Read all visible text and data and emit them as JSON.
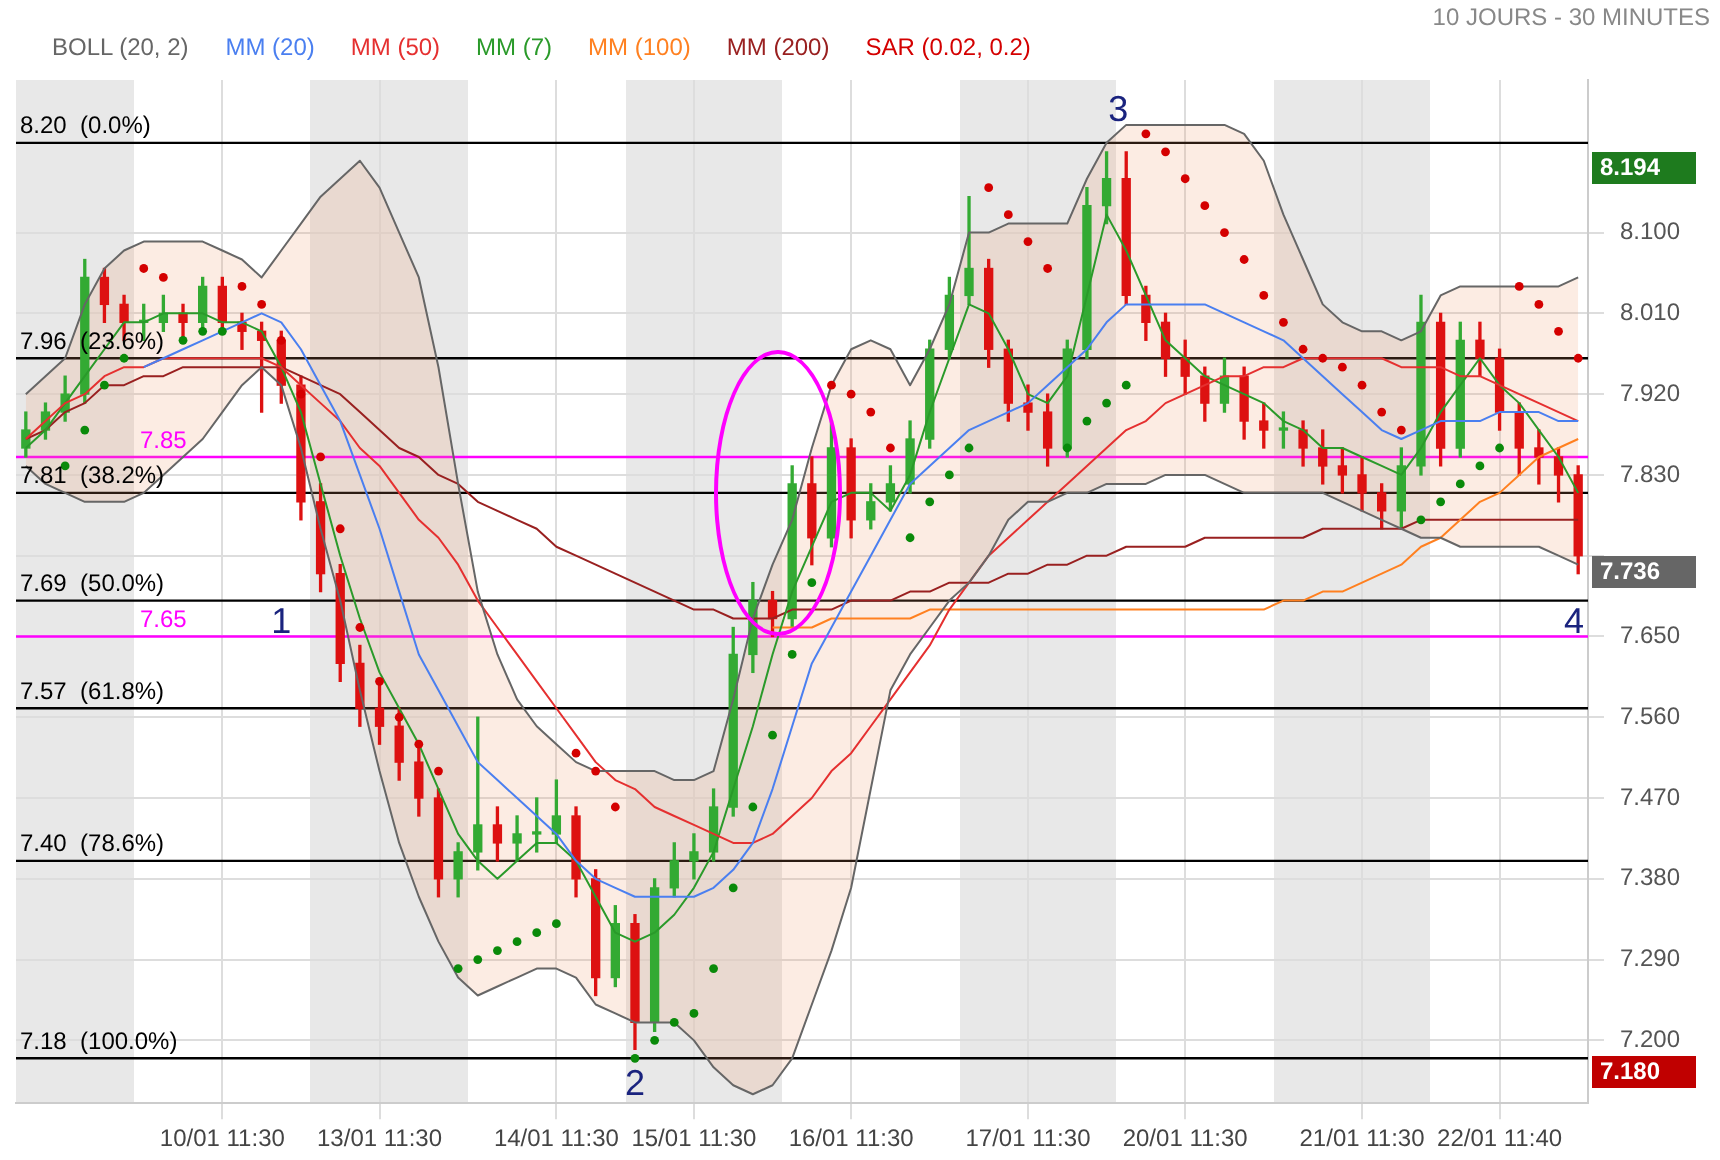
{
  "chart_data": {
    "type": "candlestick",
    "categories": [
      null,
      null,
      null,
      null,
      null,
      null,
      null,
      null,
      null,
      null,
      "10/01 11:30",
      null,
      null,
      null,
      null,
      null,
      null,
      null,
      "13/01 11:30",
      null,
      null,
      null,
      null,
      null,
      null,
      null,
      null,
      "14/01 11:30",
      null,
      null,
      null,
      null,
      null,
      null,
      "15/01 11:30",
      null,
      null,
      null,
      null,
      null,
      null,
      null,
      "16/01 11:30",
      null,
      null,
      null,
      null,
      null,
      null,
      null,
      null,
      "17/01 11:30",
      null,
      null,
      null,
      null,
      null,
      null,
      null,
      "20/01 11:30",
      null,
      null,
      null,
      null,
      null,
      null,
      null,
      null,
      "21/01 11:30",
      null,
      null,
      null,
      null,
      null,
      null,
      "22/01 11:40",
      null,
      null,
      null,
      null
    ],
    "ohlc": [
      [
        7.86,
        7.9,
        7.85,
        7.88
      ],
      [
        7.88,
        7.91,
        7.87,
        7.9
      ],
      [
        7.9,
        7.94,
        7.89,
        7.92
      ],
      [
        7.92,
        8.07,
        7.91,
        8.05
      ],
      [
        8.05,
        8.06,
        8.0,
        8.02
      ],
      [
        8.02,
        8.03,
        7.98,
        8.0
      ],
      [
        8.0,
        8.02,
        7.98,
        8.0
      ],
      [
        8.0,
        8.03,
        7.99,
        8.01
      ],
      [
        8.01,
        8.02,
        7.98,
        8.0
      ],
      [
        8.0,
        8.05,
        7.99,
        8.04
      ],
      [
        8.04,
        8.05,
        7.99,
        8.0
      ],
      [
        8.0,
        8.01,
        7.97,
        7.99
      ],
      [
        7.99,
        8.0,
        7.9,
        7.98
      ],
      [
        7.98,
        7.99,
        7.91,
        7.93
      ],
      [
        7.93,
        7.94,
        7.78,
        7.8
      ],
      [
        7.8,
        7.82,
        7.7,
        7.72
      ],
      [
        7.72,
        7.73,
        7.6,
        7.62
      ],
      [
        7.62,
        7.64,
        7.55,
        7.57
      ],
      [
        7.57,
        7.6,
        7.53,
        7.55
      ],
      [
        7.55,
        7.57,
        7.49,
        7.51
      ],
      [
        7.51,
        7.53,
        7.45,
        7.47
      ],
      [
        7.47,
        7.48,
        7.36,
        7.38
      ],
      [
        7.38,
        7.42,
        7.36,
        7.41
      ],
      [
        7.41,
        7.56,
        7.39,
        7.44
      ],
      [
        7.44,
        7.46,
        7.4,
        7.42
      ],
      [
        7.42,
        7.45,
        7.4,
        7.43
      ],
      [
        7.43,
        7.47,
        7.41,
        7.43
      ],
      [
        7.43,
        7.49,
        7.42,
        7.45
      ],
      [
        7.45,
        7.46,
        7.36,
        7.38
      ],
      [
        7.38,
        7.39,
        7.25,
        7.27
      ],
      [
        7.27,
        7.35,
        7.26,
        7.33
      ],
      [
        7.33,
        7.34,
        7.19,
        7.22
      ],
      [
        7.22,
        7.38,
        7.21,
        7.37
      ],
      [
        7.37,
        7.42,
        7.36,
        7.4
      ],
      [
        7.4,
        7.43,
        7.38,
        7.41
      ],
      [
        7.41,
        7.48,
        7.4,
        7.46
      ],
      [
        7.46,
        7.66,
        7.45,
        7.63
      ],
      [
        7.63,
        7.71,
        7.61,
        7.69
      ],
      [
        7.69,
        7.7,
        7.65,
        7.67
      ],
      [
        7.67,
        7.84,
        7.66,
        7.82
      ],
      [
        7.82,
        7.85,
        7.73,
        7.76
      ],
      [
        7.76,
        7.89,
        7.75,
        7.86
      ],
      [
        7.86,
        7.87,
        7.76,
        7.78
      ],
      [
        7.78,
        7.82,
        7.77,
        7.8
      ],
      [
        7.8,
        7.84,
        7.79,
        7.82
      ],
      [
        7.82,
        7.89,
        7.81,
        7.87
      ],
      [
        7.87,
        7.98,
        7.86,
        7.97
      ],
      [
        7.97,
        8.05,
        7.96,
        8.03
      ],
      [
        8.03,
        8.14,
        8.02,
        8.06
      ],
      [
        8.06,
        8.07,
        7.95,
        7.97
      ],
      [
        7.97,
        7.98,
        7.89,
        7.91
      ],
      [
        7.91,
        7.93,
        7.88,
        7.9
      ],
      [
        7.9,
        7.92,
        7.84,
        7.86
      ],
      [
        7.86,
        7.98,
        7.85,
        7.97
      ],
      [
        7.97,
        8.15,
        7.96,
        8.13
      ],
      [
        8.13,
        8.19,
        8.11,
        8.16
      ],
      [
        8.16,
        8.19,
        8.02,
        8.03
      ],
      [
        8.03,
        8.04,
        7.98,
        8.0
      ],
      [
        8.0,
        8.01,
        7.94,
        7.96
      ],
      [
        7.96,
        7.98,
        7.92,
        7.94
      ],
      [
        7.94,
        7.95,
        7.89,
        7.91
      ],
      [
        7.91,
        7.96,
        7.9,
        7.94
      ],
      [
        7.94,
        7.95,
        7.87,
        7.89
      ],
      [
        7.89,
        7.91,
        7.86,
        7.88
      ],
      [
        7.88,
        7.9,
        7.86,
        7.88
      ],
      [
        7.88,
        7.89,
        7.84,
        7.86
      ],
      [
        7.86,
        7.88,
        7.82,
        7.84
      ],
      [
        7.84,
        7.86,
        7.81,
        7.83
      ],
      [
        7.83,
        7.85,
        7.79,
        7.81
      ],
      [
        7.81,
        7.82,
        7.77,
        7.79
      ],
      [
        7.79,
        7.86,
        7.77,
        7.84
      ],
      [
        7.84,
        8.03,
        7.83,
        8.0
      ],
      [
        8.0,
        8.01,
        7.84,
        7.86
      ],
      [
        7.86,
        8.0,
        7.85,
        7.98
      ],
      [
        7.98,
        8.0,
        7.94,
        7.96
      ],
      [
        7.96,
        7.97,
        7.88,
        7.9
      ],
      [
        7.9,
        7.91,
        7.83,
        7.86
      ],
      [
        7.86,
        7.88,
        7.82,
        7.85
      ],
      [
        7.85,
        7.86,
        7.8,
        7.83
      ],
      [
        7.83,
        7.84,
        7.72,
        7.74
      ]
    ],
    "series": [
      {
        "name": "BOLL (20, 2)",
        "type": "line",
        "color": "#666666",
        "values": [
          7.92,
          7.94,
          7.96,
          8.02,
          8.06,
          8.08,
          8.09,
          8.09,
          8.09,
          8.09,
          8.08,
          8.07,
          8.05,
          8.08,
          8.11,
          8.14,
          8.16,
          8.18,
          8.15,
          8.1,
          8.05,
          7.95,
          7.82,
          7.7,
          7.63,
          7.58,
          7.55,
          7.53,
          7.51,
          7.5,
          7.5,
          7.5,
          7.5,
          7.49,
          7.49,
          7.5,
          7.58,
          7.67,
          7.73,
          7.78,
          7.86,
          7.93,
          7.97,
          7.98,
          7.97,
          7.93,
          7.97,
          8.02,
          8.1,
          8.1,
          8.11,
          8.11,
          8.11,
          8.11,
          8.16,
          8.2,
          8.22,
          8.22,
          8.22,
          8.22,
          8.22,
          8.22,
          8.21,
          8.18,
          8.12,
          8.07,
          8.02,
          8.0,
          7.99,
          7.99,
          7.98,
          7.99,
          8.03,
          8.04,
          8.04,
          8.04,
          8.04,
          8.04,
          8.04,
          8.05
        ],
        "upper": [
          7.92,
          7.94,
          7.96,
          8.02,
          8.06,
          8.08,
          8.09,
          8.09,
          8.09,
          8.09,
          8.08,
          8.07,
          8.05,
          8.08,
          8.11,
          8.14,
          8.16,
          8.18,
          8.15,
          8.1,
          8.05,
          7.95,
          7.82,
          7.7,
          7.63,
          7.58,
          7.55,
          7.53,
          7.51,
          7.5,
          7.5,
          7.5,
          7.5,
          7.49,
          7.49,
          7.5,
          7.58,
          7.67,
          7.73,
          7.78,
          7.86,
          7.93,
          7.97,
          7.98,
          7.97,
          7.93,
          7.97,
          8.02,
          8.1,
          8.1,
          8.11,
          8.11,
          8.11,
          8.11,
          8.16,
          8.2,
          8.22,
          8.22,
          8.22,
          8.22,
          8.22,
          8.22,
          8.21,
          8.18,
          8.12,
          8.07,
          8.02,
          8.0,
          7.99,
          7.99,
          7.98,
          7.99,
          8.03,
          8.04,
          8.04,
          8.04,
          8.04,
          8.04,
          8.04,
          8.05
        ],
        "lower": [
          7.84,
          7.82,
          7.81,
          7.8,
          7.8,
          7.8,
          7.81,
          7.83,
          7.85,
          7.87,
          7.9,
          7.93,
          7.95,
          7.93,
          7.86,
          7.77,
          7.69,
          7.59,
          7.5,
          7.42,
          7.36,
          7.31,
          7.27,
          7.25,
          7.26,
          7.27,
          7.28,
          7.28,
          7.27,
          7.24,
          7.23,
          7.22,
          7.22,
          7.22,
          7.2,
          7.17,
          7.15,
          7.14,
          7.15,
          7.18,
          7.24,
          7.3,
          7.37,
          7.48,
          7.59,
          7.63,
          7.66,
          7.69,
          7.71,
          7.74,
          7.78,
          7.8,
          7.8,
          7.81,
          7.81,
          7.82,
          7.82,
          7.82,
          7.83,
          7.83,
          7.83,
          7.82,
          7.81,
          7.81,
          7.81,
          7.81,
          7.81,
          7.8,
          7.79,
          7.78,
          7.77,
          7.76,
          7.76,
          7.75,
          7.75,
          7.75,
          7.75,
          7.75,
          7.74,
          7.73
        ]
      },
      {
        "type": "line",
        "color": "#666666",
        "values": [
          7.84,
          7.82,
          7.81,
          7.8,
          7.8,
          7.8,
          7.81,
          7.83,
          7.85,
          7.87,
          7.9,
          7.93,
          7.95,
          7.93,
          7.86,
          7.77,
          7.69,
          7.59,
          7.5,
          7.42,
          7.36,
          7.31,
          7.27,
          7.25,
          7.26,
          7.27,
          7.28,
          7.28,
          7.27,
          7.24,
          7.23,
          7.22,
          7.22,
          7.22,
          7.2,
          7.17,
          7.15,
          7.14,
          7.15,
          7.18,
          7.24,
          7.3,
          7.37,
          7.48,
          7.59,
          7.63,
          7.66,
          7.69,
          7.71,
          7.74,
          7.78,
          7.8,
          7.8,
          7.81,
          7.81,
          7.82,
          7.82,
          7.82,
          7.83,
          7.83,
          7.83,
          7.82,
          7.81,
          7.81,
          7.81,
          7.81,
          7.81,
          7.8,
          7.79,
          7.78,
          7.77,
          7.76,
          7.76,
          7.75,
          7.75,
          7.75,
          7.75,
          7.75,
          7.74,
          7.73
        ]
      },
      {
        "name": "MM (20)",
        "type": "line",
        "color": "#4a7ff0",
        "values": [
          null,
          null,
          null,
          null,
          null,
          null,
          7.95,
          7.96,
          7.97,
          7.98,
          7.99,
          8.0,
          8.01,
          8.0,
          7.97,
          7.93,
          7.89,
          7.83,
          7.77,
          7.7,
          7.63,
          7.59,
          7.55,
          7.51,
          7.49,
          7.47,
          7.45,
          7.43,
          7.4,
          7.38,
          7.37,
          7.36,
          7.36,
          7.36,
          7.36,
          7.37,
          7.39,
          7.42,
          7.48,
          7.55,
          7.62,
          7.66,
          7.7,
          7.74,
          7.78,
          7.82,
          7.84,
          7.86,
          7.88,
          7.89,
          7.9,
          7.91,
          7.93,
          7.95,
          7.97,
          8.0,
          8.02,
          8.02,
          8.02,
          8.02,
          8.02,
          8.01,
          8.0,
          7.99,
          7.98,
          7.96,
          7.94,
          7.92,
          7.9,
          7.88,
          7.87,
          7.88,
          7.89,
          7.89,
          7.89,
          7.9,
          7.9,
          7.9,
          7.89,
          7.89
        ]
      },
      {
        "name": "MM (50)",
        "type": "line",
        "color": "#e53030",
        "values": [
          7.87,
          7.89,
          7.91,
          7.92,
          7.94,
          7.95,
          7.95,
          7.96,
          7.96,
          7.96,
          7.96,
          7.96,
          7.96,
          7.95,
          7.93,
          7.91,
          7.89,
          7.86,
          7.84,
          7.81,
          7.78,
          7.76,
          7.73,
          7.69,
          7.66,
          7.63,
          7.6,
          7.57,
          7.54,
          7.51,
          7.49,
          7.48,
          7.46,
          7.45,
          7.44,
          7.43,
          7.42,
          7.42,
          7.43,
          7.45,
          7.47,
          7.5,
          7.52,
          7.55,
          7.58,
          7.61,
          7.64,
          7.68,
          7.71,
          7.74,
          7.76,
          7.78,
          7.8,
          7.82,
          7.84,
          7.86,
          7.88,
          7.89,
          7.91,
          7.92,
          7.93,
          7.94,
          7.94,
          7.95,
          7.95,
          7.96,
          7.96,
          7.96,
          7.96,
          7.96,
          7.95,
          7.95,
          7.95,
          7.94,
          7.94,
          7.93,
          7.92,
          7.91,
          7.9,
          7.89
        ]
      },
      {
        "name": "MM (7)",
        "type": "line",
        "color": "#2a9a2a",
        "values": [
          7.86,
          7.88,
          7.91,
          7.94,
          7.97,
          8.0,
          8.0,
          8.01,
          8.01,
          8.01,
          8.0,
          8.0,
          7.99,
          7.95,
          7.9,
          7.82,
          7.74,
          7.67,
          7.61,
          7.57,
          7.53,
          7.48,
          7.43,
          7.4,
          7.38,
          7.4,
          7.42,
          7.42,
          7.4,
          7.36,
          7.32,
          7.31,
          7.32,
          7.34,
          7.37,
          7.41,
          7.48,
          7.55,
          7.63,
          7.7,
          7.75,
          7.8,
          7.81,
          7.81,
          7.79,
          7.83,
          7.9,
          7.96,
          8.02,
          8.01,
          7.97,
          7.92,
          7.91,
          7.94,
          8.03,
          8.12,
          8.08,
          8.03,
          7.98,
          7.96,
          7.94,
          7.93,
          7.92,
          7.91,
          7.89,
          7.88,
          7.86,
          7.86,
          7.85,
          7.84,
          7.83,
          7.86,
          7.9,
          7.93,
          7.96,
          7.93,
          7.91,
          7.88,
          7.85,
          7.81
        ]
      },
      {
        "name": "MM (100)",
        "type": "line",
        "color": "#ff8020",
        "values": [
          null,
          null,
          null,
          null,
          null,
          null,
          null,
          null,
          null,
          null,
          null,
          null,
          null,
          null,
          null,
          null,
          null,
          null,
          null,
          null,
          null,
          null,
          null,
          null,
          null,
          null,
          null,
          null,
          null,
          null,
          null,
          null,
          null,
          null,
          null,
          null,
          null,
          null,
          7.66,
          7.66,
          7.66,
          7.67,
          7.67,
          7.67,
          7.67,
          7.67,
          7.68,
          7.68,
          7.68,
          7.68,
          7.68,
          7.68,
          7.68,
          7.68,
          7.68,
          7.68,
          7.68,
          7.68,
          7.68,
          7.68,
          7.68,
          7.68,
          7.68,
          7.68,
          7.69,
          7.69,
          7.7,
          7.7,
          7.71,
          7.72,
          7.73,
          7.75,
          7.76,
          7.78,
          7.8,
          7.81,
          7.83,
          7.85,
          7.86,
          7.87
        ]
      },
      {
        "name": "MM (200)",
        "type": "line",
        "color": "#992020",
        "values": [
          7.87,
          7.88,
          7.9,
          7.91,
          7.93,
          7.93,
          7.94,
          7.94,
          7.95,
          7.95,
          7.95,
          7.95,
          7.95,
          7.95,
          7.94,
          7.93,
          7.92,
          7.9,
          7.88,
          7.86,
          7.85,
          7.83,
          7.82,
          7.8,
          7.79,
          7.78,
          7.77,
          7.75,
          7.74,
          7.73,
          7.72,
          7.71,
          7.7,
          7.69,
          7.68,
          7.68,
          7.67,
          7.67,
          7.67,
          7.68,
          7.68,
          7.68,
          7.69,
          7.69,
          7.69,
          7.7,
          7.7,
          7.71,
          7.71,
          7.71,
          7.72,
          7.72,
          7.73,
          7.73,
          7.74,
          7.74,
          7.75,
          7.75,
          7.75,
          7.75,
          7.76,
          7.76,
          7.76,
          7.76,
          7.76,
          7.76,
          7.77,
          7.77,
          7.77,
          7.77,
          7.77,
          7.78,
          7.78,
          7.78,
          7.78,
          7.78,
          7.78,
          7.78,
          7.78,
          7.78
        ]
      },
      {
        "name": "SAR (0.02, 0.2)",
        "type": "scatter",
        "color": "#d40000",
        "values": [
          null,
          null,
          7.84,
          7.88,
          7.93,
          7.96,
          8.06,
          8.05,
          7.98,
          7.99,
          7.99,
          8.04,
          8.02,
          7.98,
          7.92,
          7.85,
          7.77,
          7.66,
          7.6,
          7.56,
          7.53,
          7.5,
          7.28,
          7.29,
          7.3,
          7.31,
          7.32,
          7.33,
          7.52,
          7.5,
          7.46,
          7.18,
          7.2,
          7.22,
          7.23,
          7.28,
          7.37,
          7.46,
          7.54,
          7.63,
          7.71,
          7.93,
          7.92,
          7.9,
          7.86,
          7.76,
          7.8,
          7.83,
          7.86,
          8.15,
          8.12,
          8.09,
          8.06,
          7.86,
          7.89,
          7.91,
          7.93,
          8.21,
          8.19,
          8.16,
          8.13,
          8.1,
          8.07,
          8.03,
          8.0,
          7.97,
          7.96,
          7.95,
          7.93,
          7.9,
          7.88,
          7.78,
          7.8,
          7.82,
          7.84,
          7.86,
          8.04,
          8.02,
          7.99,
          7.96
        ],
        "colors": [
          null,
          null,
          "#0a8a0a",
          "#0a8a0a",
          "#0a8a0a",
          "#0a8a0a",
          "#d40000",
          "#d40000",
          "#0a8a0a",
          "#0a8a0a",
          "#0a8a0a",
          "#d40000",
          "#d40000",
          "#d40000",
          "#d40000",
          "#d40000",
          "#d40000",
          "#d40000",
          "#d40000",
          "#d40000",
          "#d40000",
          "#d40000",
          "#0a8a0a",
          "#0a8a0a",
          "#0a8a0a",
          "#0a8a0a",
          "#0a8a0a",
          "#0a8a0a",
          "#d40000",
          "#d40000",
          "#d40000",
          "#0a8a0a",
          "#0a8a0a",
          "#0a8a0a",
          "#0a8a0a",
          "#0a8a0a",
          "#0a8a0a",
          "#0a8a0a",
          "#0a8a0a",
          "#0a8a0a",
          "#0a8a0a",
          "#d40000",
          "#d40000",
          "#d40000",
          "#d40000",
          "#0a8a0a",
          "#0a8a0a",
          "#0a8a0a",
          "#0a8a0a",
          "#d40000",
          "#d40000",
          "#d40000",
          "#d40000",
          "#0a8a0a",
          "#0a8a0a",
          "#0a8a0a",
          "#0a8a0a",
          "#d40000",
          "#d40000",
          "#d40000",
          "#d40000",
          "#d40000",
          "#d40000",
          "#d40000",
          "#d40000",
          "#d40000",
          "#d40000",
          "#d40000",
          "#d40000",
          "#d40000",
          "#d40000",
          "#0a8a0a",
          "#0a8a0a",
          "#0a8a0a",
          "#0a8a0a",
          "#0a8a0a",
          "#d40000",
          "#d40000",
          "#d40000",
          "#d40000"
        ]
      }
    ],
    "ylim": [
      7.13,
      8.27
    ],
    "yticks": [
      {
        "value": 7.2,
        "label": "7.200"
      },
      {
        "value": 7.29,
        "label": "7.290"
      },
      {
        "value": 7.38,
        "label": "7.380"
      },
      {
        "value": 7.47,
        "label": "7.470"
      },
      {
        "value": 7.56,
        "label": "7.560"
      },
      {
        "value": 7.65,
        "label": "7.650"
      },
      {
        "value": 7.74,
        "label": null
      },
      {
        "value": 7.83,
        "label": "7.830"
      },
      {
        "value": 7.92,
        "label": "7.920"
      },
      {
        "value": 8.01,
        "label": "8.010"
      },
      {
        "value": 8.1,
        "label": "8.100"
      }
    ],
    "grid": true,
    "legend": "top left",
    "ref_lines": [
      {
        "axis": "y",
        "value": 8.2,
        "label": "8.20  (0.0%)",
        "color": "#000000"
      },
      {
        "axis": "y",
        "value": 7.96,
        "label": "7.96  (23.6%)",
        "color": "#000000"
      },
      {
        "axis": "y",
        "value": 7.81,
        "label": "7.81  (38.2%)",
        "color": "#000000"
      },
      {
        "axis": "y",
        "value": 7.69,
        "label": "7.69  (50.0%)",
        "color": "#000000"
      },
      {
        "axis": "y",
        "value": 7.57,
        "label": "7.57  (61.8%)",
        "color": "#000000"
      },
      {
        "axis": "y",
        "value": 7.4,
        "label": "7.40  (78.6%)",
        "color": "#000000"
      },
      {
        "axis": "y",
        "value": 7.18,
        "label": "7.18  (100.0%)",
        "color": "#000000"
      },
      {
        "axis": "y",
        "value": 7.85,
        "label": "7.85",
        "color": "#ff00ff"
      },
      {
        "axis": "y",
        "value": 7.65,
        "label": "7.65",
        "color": "#ff00ff"
      }
    ],
    "annotations": [
      "10 JOURS - 30 MINUTES",
      "1",
      "2",
      "3",
      "4",
      "8.194",
      "7.180",
      "7.736"
    ]
  }
}
